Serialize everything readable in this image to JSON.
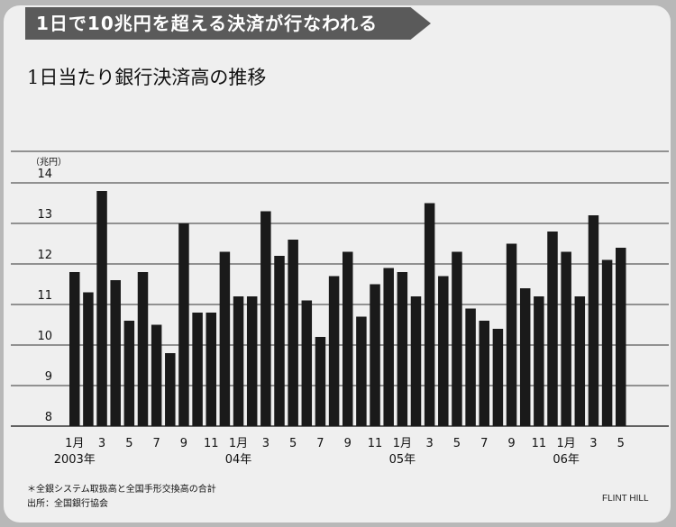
{
  "headline": "1日で10兆円を超える決済が行なわれる",
  "chart_data": {
    "type": "bar",
    "title": "1日当たり銀行決済高の推移",
    "ylabel": "（兆円）",
    "ylim": [
      8,
      14
    ],
    "yticks": [
      8,
      9,
      10,
      11,
      12,
      13,
      14
    ],
    "grid": true,
    "categories": [
      "2003-01",
      "2003-02",
      "2003-03",
      "2003-04",
      "2003-05",
      "2003-06",
      "2003-07",
      "2003-08",
      "2003-09",
      "2003-10",
      "2003-11",
      "2003-12",
      "2004-01",
      "2004-02",
      "2004-03",
      "2004-04",
      "2004-05",
      "2004-06",
      "2004-07",
      "2004-08",
      "2004-09",
      "2004-10",
      "2004-11",
      "2004-12",
      "2005-01",
      "2005-02",
      "2005-03",
      "2005-04",
      "2005-05",
      "2005-06",
      "2005-07",
      "2005-08",
      "2005-09",
      "2005-10",
      "2005-11",
      "2005-12",
      "2006-01",
      "2006-02",
      "2006-03",
      "2006-04",
      "2006-05"
    ],
    "values": [
      11.8,
      11.3,
      13.8,
      11.6,
      10.6,
      11.8,
      10.5,
      9.8,
      13.0,
      10.8,
      10.8,
      12.3,
      11.2,
      11.2,
      13.3,
      12.2,
      12.6,
      11.1,
      10.2,
      11.7,
      12.3,
      10.7,
      11.5,
      11.9,
      11.8,
      11.2,
      13.5,
      11.7,
      12.3,
      10.9,
      10.6,
      10.4,
      12.5,
      11.4,
      11.2,
      12.8,
      12.3,
      11.2,
      13.2,
      12.1,
      12.4
    ],
    "x_tick_labels": [
      {
        "index": 0,
        "month": "1月",
        "year": "2003年"
      },
      {
        "index": 2,
        "month": "3"
      },
      {
        "index": 4,
        "month": "5"
      },
      {
        "index": 6,
        "month": "7"
      },
      {
        "index": 8,
        "month": "9"
      },
      {
        "index": 10,
        "month": "11"
      },
      {
        "index": 12,
        "month": "1月",
        "year": "04年"
      },
      {
        "index": 14,
        "month": "3"
      },
      {
        "index": 16,
        "month": "5"
      },
      {
        "index": 18,
        "month": "7"
      },
      {
        "index": 20,
        "month": "9"
      },
      {
        "index": 22,
        "month": "11"
      },
      {
        "index": 24,
        "month": "1月",
        "year": "05年"
      },
      {
        "index": 26,
        "month": "3"
      },
      {
        "index": 28,
        "month": "5"
      },
      {
        "index": 30,
        "month": "7"
      },
      {
        "index": 32,
        "month": "9"
      },
      {
        "index": 34,
        "month": "11"
      },
      {
        "index": 36,
        "month": "1月",
        "year": "06年"
      },
      {
        "index": 38,
        "month": "3"
      },
      {
        "index": 40,
        "month": "5"
      }
    ],
    "bar_color": "#1a1a1a"
  },
  "footnote": "＊全銀システム取扱高と全国手形交換高の合計",
  "source": "出所：全国銀行協会",
  "credit": "FLINT HILL"
}
